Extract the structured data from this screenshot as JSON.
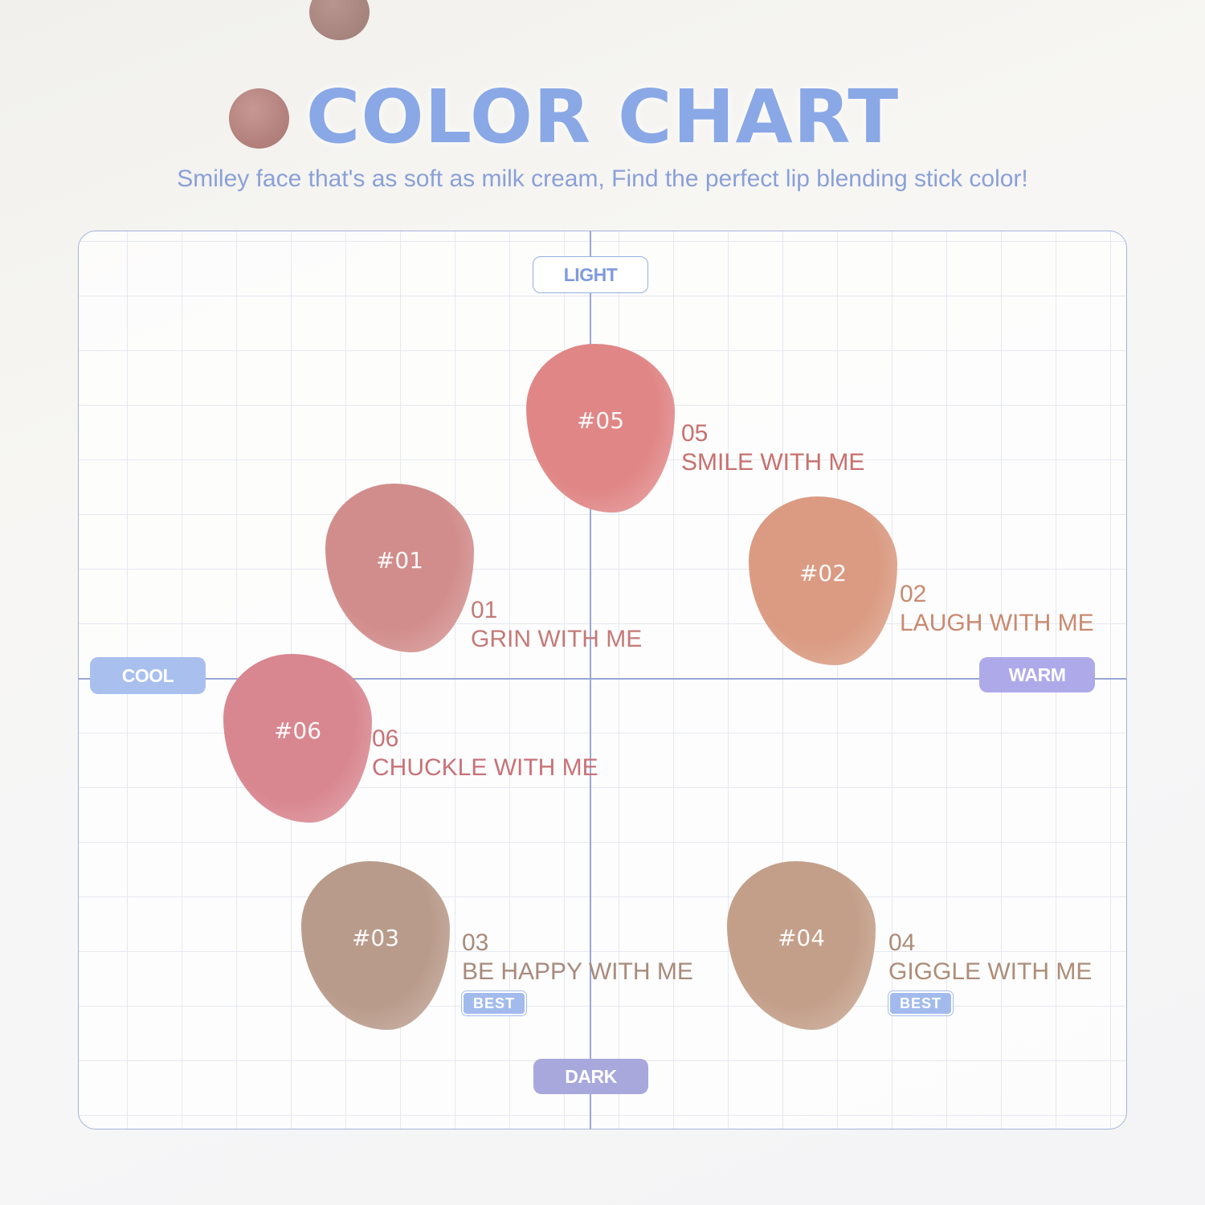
{
  "header": {
    "title": "COLOR CHART",
    "subtitle": "Smiley face that's as soft as milk cream, Find the perfect lip blending stick color!"
  },
  "axes": {
    "top": "LIGHT",
    "bottom": "DARK",
    "left": "COOL",
    "right": "WARM"
  },
  "colors": {
    "title": "#8aa8e6",
    "grid_line": "#98a8d4"
  },
  "shades": [
    {
      "code": "#05",
      "number": "05",
      "name": "SMILE WITH ME",
      "swatch_color": "#e08686",
      "text_color": "#c8706e",
      "best": null
    },
    {
      "code": "#01",
      "number": "01",
      "name": "GRIN WITH ME",
      "swatch_color": "#d18d8b",
      "text_color": "#c47a78",
      "best": null
    },
    {
      "code": "#02",
      "number": "02",
      "name": "LAUGH WITH ME",
      "swatch_color": "#da9b82",
      "text_color": "#c98a70",
      "best": null
    },
    {
      "code": "#06",
      "number": "06",
      "name": "CHUCKLE WITH ME",
      "swatch_color": "#d8868f",
      "text_color": "#c87278",
      "best": null
    },
    {
      "code": "#03",
      "number": "03",
      "name": "BE HAPPY WITH ME",
      "swatch_color": "#b99b8b",
      "text_color": "#a88a7c",
      "best": "BEST"
    },
    {
      "code": "#04",
      "number": "04",
      "name": "GIGGLE WITH ME",
      "swatch_color": "#c39f89",
      "text_color": "#ad8d78",
      "best": "BEST"
    }
  ]
}
